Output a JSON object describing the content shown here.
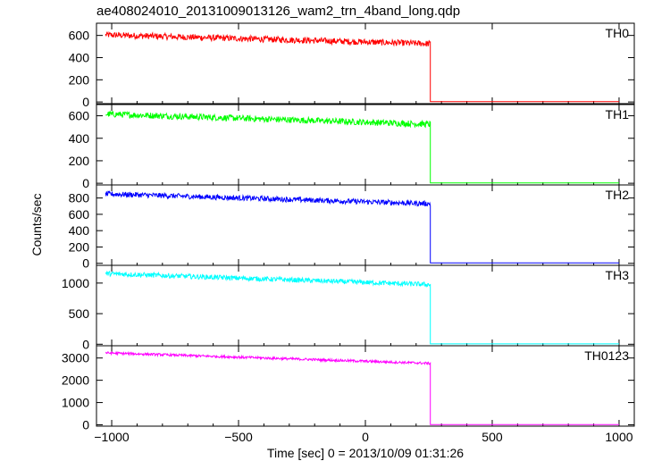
{
  "title": "ae408024010_20131009013126_wam2_trn_4band_long.qdp",
  "chart_data": {
    "type": "line",
    "title": "ae408024010_20131009013126_wam2_trn_4band_long.qdp",
    "xlabel": "Time [sec] 0 = 2013/10/09 01:31:26",
    "ylabel": "Counts/sec",
    "xlim": [
      -1060,
      1060
    ],
    "x_ticks": [
      -1000,
      -500,
      0,
      500,
      1000
    ],
    "x_tick_labels": [
      "−1000",
      "−500",
      "0",
      "500",
      "1000"
    ],
    "data_start": -1024,
    "step_time": 256,
    "panels": [
      {
        "name": "TH0",
        "color": "#ff0000",
        "ylim": [
          -15,
          710
        ],
        "ticks": [
          0,
          200,
          400,
          600
        ],
        "start_level": 605,
        "end_level": 525,
        "noise": 28,
        "after_level": 3
      },
      {
        "name": "TH1",
        "color": "#00ff00",
        "ylim": [
          -15,
          700
        ],
        "ticks": [
          0,
          200,
          400,
          600
        ],
        "start_level": 615,
        "end_level": 525,
        "noise": 28,
        "after_level": 3
      },
      {
        "name": "TH2",
        "color": "#0000ff",
        "ylim": [
          -25,
          960
        ],
        "ticks": [
          0,
          200,
          400,
          600,
          800
        ],
        "start_level": 850,
        "end_level": 730,
        "noise": 32,
        "after_level": 5
      },
      {
        "name": "TH3",
        "color": "#00ffff",
        "ylim": [
          -25,
          1290
        ],
        "ticks": [
          0,
          500,
          1000
        ],
        "start_level": 1155,
        "end_level": 975,
        "noise": 40,
        "after_level": 5
      },
      {
        "name": "TH0123",
        "color": "#ff00ff",
        "ylim": [
          -60,
          3550
        ],
        "ticks": [
          0,
          1000,
          2000,
          3000
        ],
        "start_level": 3230,
        "end_level": 2760,
        "noise": 55,
        "after_level": 12
      }
    ]
  }
}
